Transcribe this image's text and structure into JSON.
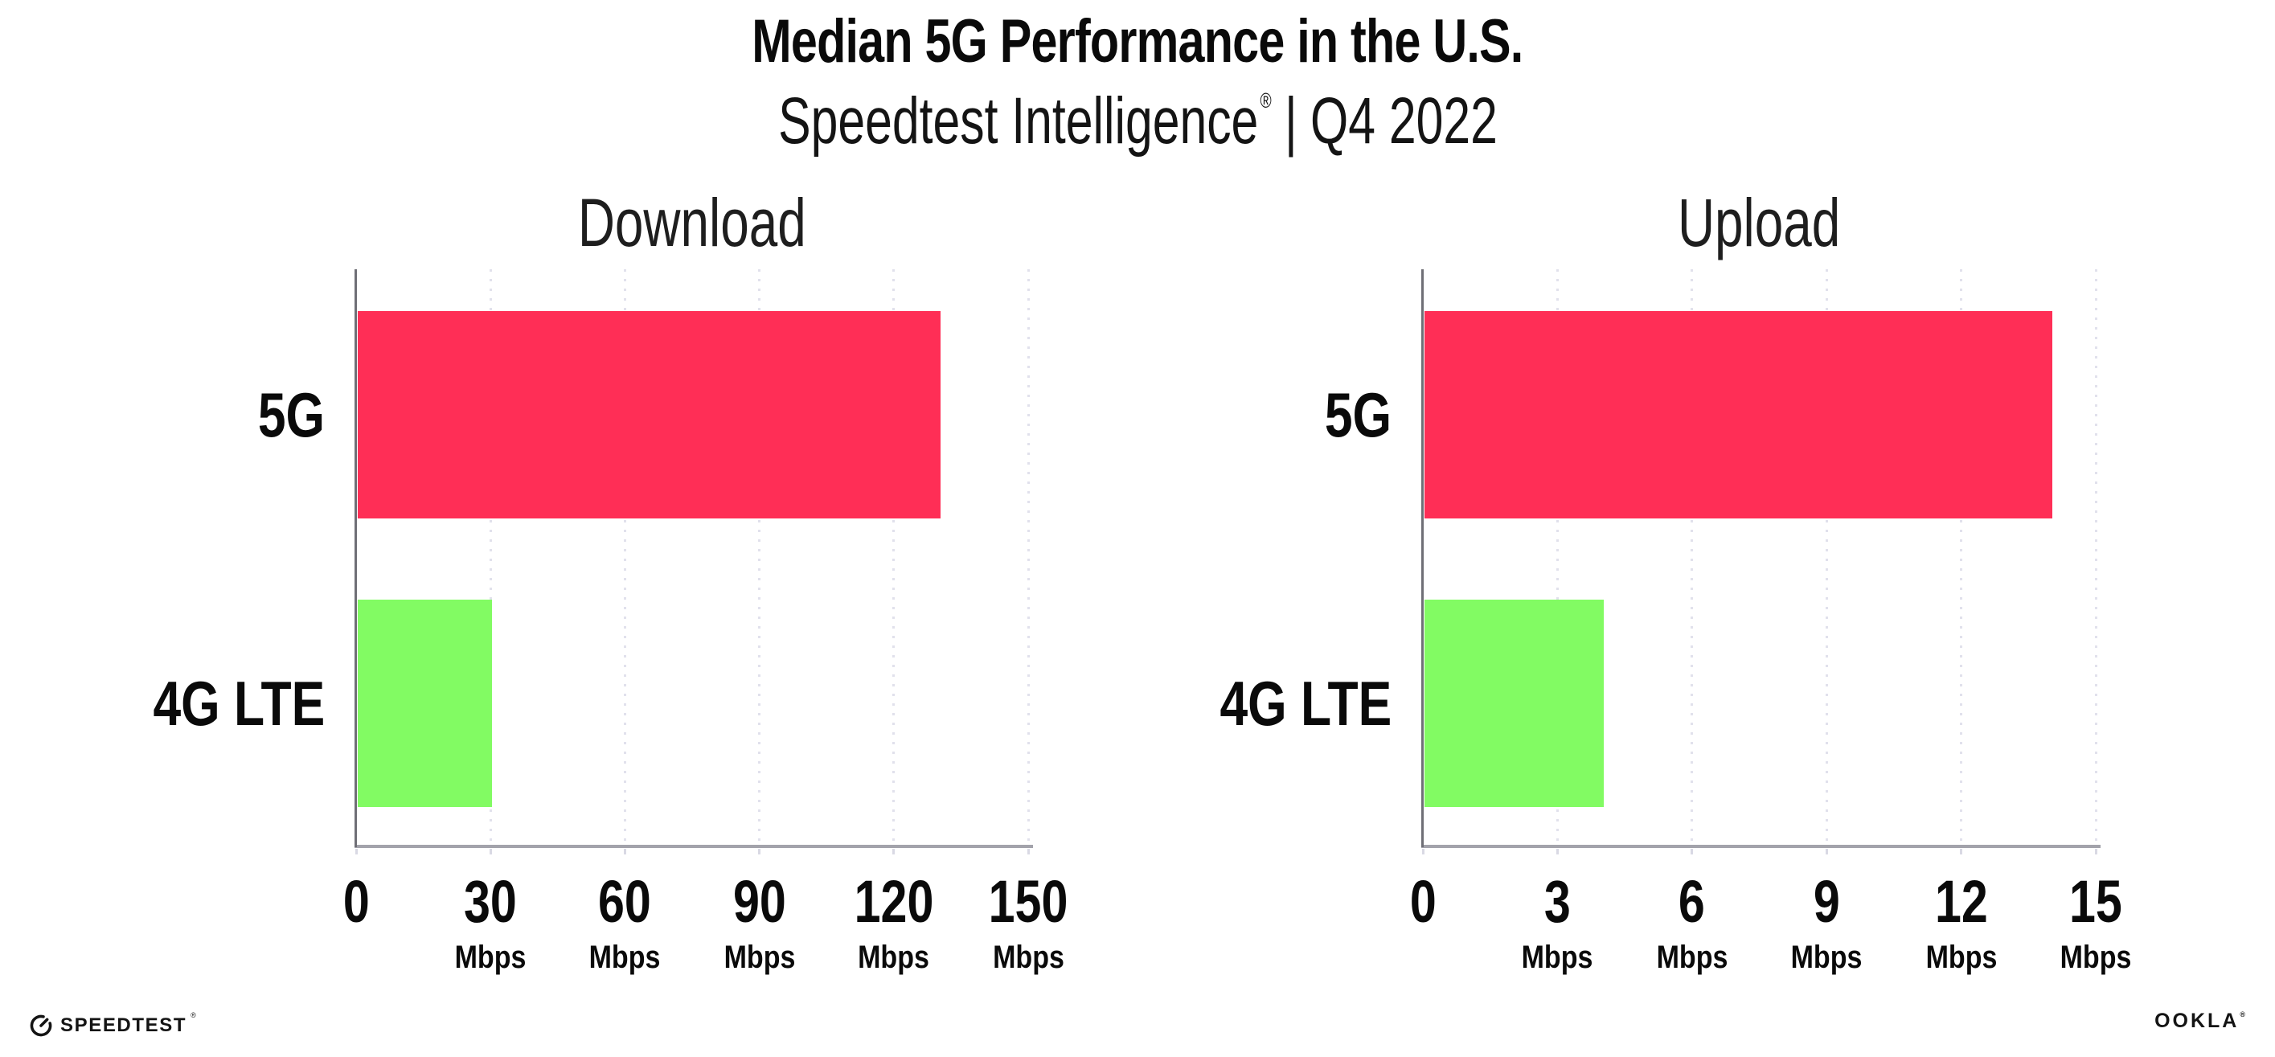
{
  "header": {
    "title": "Median 5G Performance in the U.S.",
    "subtitle": {
      "brand": "Speedtest Intelligence",
      "reg": "®",
      "separator": "|",
      "period": "Q4 2022"
    }
  },
  "chart_data": [
    {
      "type": "bar",
      "orientation": "horizontal",
      "title": "Download",
      "categories": [
        "5G",
        "4G LTE"
      ],
      "values": [
        130,
        30
      ],
      "unit": "Mbps",
      "xlim": [
        0,
        150
      ],
      "xticks": [
        0,
        30,
        60,
        90,
        120,
        150
      ],
      "grid": "vertical-dotted",
      "legend": "none",
      "bar_colors": [
        "#FF2E56",
        "#82FB63"
      ]
    },
    {
      "type": "bar",
      "orientation": "horizontal",
      "title": "Upload",
      "categories": [
        "5G",
        "4G LTE"
      ],
      "values": [
        14,
        4
      ],
      "unit": "Mbps",
      "xlim": [
        0,
        15
      ],
      "xticks": [
        0,
        3,
        6,
        9,
        12,
        15
      ],
      "grid": "vertical-dotted",
      "legend": "none",
      "bar_colors": [
        "#FF2E56",
        "#82FB63"
      ]
    }
  ],
  "footer": {
    "speedtest": {
      "label": "SPEEDTEST",
      "reg": "®"
    },
    "ookla": {
      "label": "OOKLA",
      "reg": "®"
    }
  },
  "colors": {
    "bar_5g": "#FF2E56",
    "bar_4g_lte": "#82FB63",
    "gridline": "#E1E1EC",
    "y_axis_line": "#6F6F76",
    "x_baseline": "#A3A3AB",
    "text": "#0C0C0C",
    "background": "#FFFFFF"
  }
}
